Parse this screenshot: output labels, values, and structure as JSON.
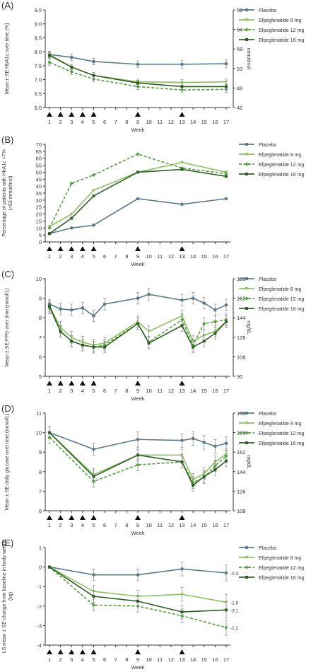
{
  "colors": {
    "placebo": "#5a7a8c",
    "efp8": "#8cc063",
    "efp12": "#4f9e3a",
    "efp16": "#2f5f24",
    "axis": "#333333"
  },
  "week_label": "Week",
  "chart_data": [
    {
      "type": "line",
      "panel_label": "(A)",
      "ylabel": "Mean ± SE HbA1c over time (%)",
      "y2label": "mmol/mol",
      "x_ticks": [
        "1",
        "2",
        "3",
        "4",
        "5",
        "6",
        "7",
        "8",
        "9",
        "10",
        "11",
        "12",
        "13",
        "14",
        "15",
        "16",
        "17"
      ],
      "x": [
        1,
        3,
        5,
        9,
        13,
        17
      ],
      "y_ticks": [
        "6.0",
        "6.5",
        "7.0",
        "7.5",
        "8.0",
        "8.5",
        "9.0",
        "9.5"
      ],
      "ylim": [
        6.0,
        9.5
      ],
      "y2_ticks": [
        "42",
        "48",
        "53",
        "58",
        "64",
        "69"
      ],
      "y2_values": [
        42,
        48,
        53,
        58,
        64,
        69
      ],
      "dose_weeks": [
        1,
        2,
        3,
        4,
        5,
        9,
        13
      ],
      "series": [
        {
          "name": "Placebo",
          "key": "placebo",
          "dash": false,
          "values": [
            7.9,
            7.8,
            7.65,
            7.55,
            7.55,
            7.57
          ],
          "err": [
            0.12,
            0.12,
            0.12,
            0.12,
            0.15,
            0.15
          ]
        },
        {
          "name": "Efpeglenatide 8 mg",
          "key": "efp8",
          "dash": false,
          "values": [
            7.9,
            7.45,
            7.15,
            6.92,
            6.9,
            6.92
          ],
          "err": [
            0.1,
            0.1,
            0.1,
            0.1,
            0.1,
            0.1
          ]
        },
        {
          "name": "Efpeglenatide 12 mg",
          "key": "efp12",
          "dash": true,
          "values": [
            7.62,
            7.28,
            7.02,
            6.75,
            6.63,
            6.65
          ],
          "err": [
            0.1,
            0.1,
            0.1,
            0.1,
            0.1,
            0.1
          ]
        },
        {
          "name": "Efpeglenatide 16 mg",
          "key": "efp16",
          "dash": false,
          "values": [
            7.87,
            7.45,
            7.15,
            6.88,
            6.75,
            6.75
          ],
          "err": [
            0.1,
            0.1,
            0.1,
            0.1,
            0.1,
            0.1
          ]
        }
      ]
    },
    {
      "type": "line",
      "panel_label": "(B)",
      "ylabel": "Percentage of patients with HbA1c <7% (<53 mmol/mol)",
      "x_ticks": [
        "1",
        "2",
        "3",
        "4",
        "5",
        "6",
        "7",
        "8",
        "9",
        "10",
        "11",
        "12",
        "13",
        "14",
        "15",
        "16",
        "17"
      ],
      "x": [
        1,
        3,
        5,
        9,
        13,
        17
      ],
      "y_ticks": [
        "0",
        "5",
        "10",
        "15",
        "20",
        "25",
        "30",
        "35",
        "40",
        "45",
        "50",
        "55",
        "60",
        "65",
        "70"
      ],
      "ylim": [
        0,
        70
      ],
      "dose_weeks": [
        1,
        2,
        3,
        4,
        5,
        9,
        13
      ],
      "series": [
        {
          "name": "Placebo",
          "key": "placebo",
          "dash": false,
          "values": [
            6,
            10,
            12,
            31,
            27,
            31
          ]
        },
        {
          "name": "Efpeglenatide 8 mg",
          "key": "efp8",
          "dash": false,
          "values": [
            11,
            20,
            37,
            50,
            57,
            50
          ]
        },
        {
          "name": "Efpeglenatide 12 mg",
          "key": "efp12",
          "dash": true,
          "values": [
            10,
            42,
            48,
            63,
            53,
            49
          ]
        },
        {
          "name": "Efpeglenatide 16 mg",
          "key": "efp16",
          "dash": false,
          "values": [
            6,
            17,
            33,
            50,
            52,
            47
          ]
        }
      ]
    },
    {
      "type": "line",
      "panel_label": "(C)",
      "ylabel": "Mean ± SE FPG over time (mmol/L)",
      "y2label": "mg/dL",
      "x_ticks": [
        "1",
        "2",
        "3",
        "4",
        "5",
        "6",
        "7",
        "8",
        "9",
        "10",
        "11",
        "12",
        "13",
        "14",
        "15",
        "16",
        "17"
      ],
      "x": [
        1,
        2,
        3,
        4,
        5,
        6,
        9,
        10,
        13,
        14,
        15,
        16,
        17
      ],
      "y_ticks": [
        "5",
        "6",
        "7",
        "8",
        "9",
        "10"
      ],
      "ylim": [
        5,
        10
      ],
      "y2_ticks": [
        "90",
        "108",
        "126",
        "144",
        "162",
        "180"
      ],
      "y2_values": [
        90,
        108,
        126,
        144,
        162,
        180
      ],
      "dose_weeks": [
        1,
        2,
        3,
        4,
        5,
        9,
        13
      ],
      "series": [
        {
          "name": "Placebo",
          "key": "placebo",
          "dash": false,
          "values": [
            8.7,
            8.45,
            8.4,
            8.5,
            8.1,
            8.7,
            9.0,
            9.2,
            8.9,
            9.0,
            8.75,
            8.4,
            8.65
          ],
          "err": [
            0.25,
            0.3,
            0.3,
            0.3,
            0.3,
            0.3,
            0.3,
            0.3,
            0.3,
            0.3,
            0.3,
            0.3,
            0.3
          ]
        },
        {
          "name": "Efpeglenatide 8 mg",
          "key": "efp8",
          "dash": false,
          "values": [
            8.6,
            7.5,
            7.0,
            6.75,
            6.6,
            6.7,
            7.8,
            7.3,
            8.1,
            6.8,
            7.1,
            7.3,
            7.8
          ],
          "err": [
            0.3,
            0.3,
            0.3,
            0.3,
            0.3,
            0.3,
            0.3,
            0.3,
            0.3,
            0.3,
            0.3,
            0.3,
            0.3
          ]
        },
        {
          "name": "Efpeglenatide 12 mg",
          "key": "efp12",
          "dash": true,
          "values": [
            8.5,
            7.3,
            6.8,
            6.6,
            6.5,
            6.6,
            7.7,
            6.75,
            7.9,
            6.6,
            7.7,
            7.8,
            7.9
          ],
          "err": [
            0.3,
            0.3,
            0.3,
            0.3,
            0.3,
            0.3,
            0.3,
            0.3,
            0.3,
            0.3,
            0.3,
            0.3,
            0.3
          ]
        },
        {
          "name": "Efpeglenatide 16 mg",
          "key": "efp16",
          "dash": false,
          "values": [
            8.6,
            7.3,
            6.8,
            6.6,
            6.5,
            6.5,
            7.7,
            6.7,
            7.6,
            6.5,
            6.8,
            7.2,
            7.8
          ],
          "err": [
            0.3,
            0.3,
            0.3,
            0.3,
            0.3,
            0.3,
            0.3,
            0.3,
            0.3,
            0.3,
            0.3,
            0.3,
            0.3
          ]
        }
      ]
    },
    {
      "type": "line",
      "panel_label": "(D)",
      "ylabel": "Mean ± SE daily glucose over time (mmol/L)",
      "y2label": "mg/dL",
      "x_ticks": [
        "1",
        "2",
        "3",
        "4",
        "5",
        "6",
        "7",
        "8",
        "9",
        "10",
        "11",
        "12",
        "13",
        "14",
        "15",
        "16",
        "17"
      ],
      "x": [
        1,
        5,
        9,
        13,
        14,
        15,
        16,
        17
      ],
      "y_ticks": [
        "6",
        "7",
        "8",
        "9",
        "10",
        "11"
      ],
      "ylim": [
        6,
        11
      ],
      "y2_ticks": [
        "108",
        "126",
        "144",
        "162",
        "180",
        "198"
      ],
      "y2_values": [
        108,
        126,
        144,
        162,
        180,
        198
      ],
      "dose_weeks": [
        1,
        2,
        3,
        4,
        5,
        9,
        13
      ],
      "series": [
        {
          "name": "Placebo",
          "key": "placebo",
          "dash": false,
          "values": [
            10.0,
            9.15,
            9.65,
            9.6,
            9.7,
            9.5,
            9.3,
            9.45
          ],
          "err": [
            0.3,
            0.3,
            0.4,
            0.35,
            0.35,
            0.35,
            0.35,
            0.35
          ]
        },
        {
          "name": "Efpeglenatide 8 mg",
          "key": "efp8",
          "dash": false,
          "values": [
            10.0,
            7.85,
            8.85,
            8.85,
            7.6,
            7.9,
            8.5,
            8.9
          ],
          "err": [
            0.3,
            0.3,
            0.3,
            0.3,
            0.3,
            0.3,
            0.3,
            0.3
          ]
        },
        {
          "name": "Efpeglenatide 12 mg",
          "key": "efp12",
          "dash": true,
          "values": [
            9.75,
            7.5,
            8.35,
            8.5,
            7.45,
            7.7,
            8.3,
            8.8
          ],
          "err": [
            0.3,
            0.3,
            0.3,
            0.3,
            0.3,
            0.3,
            0.3,
            0.3
          ]
        },
        {
          "name": "Efpeglenatide 16 mg",
          "key": "efp16",
          "dash": false,
          "values": [
            10.0,
            7.75,
            8.85,
            8.5,
            7.3,
            7.75,
            8.1,
            8.55
          ],
          "err": [
            0.3,
            0.3,
            0.3,
            0.3,
            0.3,
            0.3,
            0.3,
            0.3
          ]
        }
      ]
    },
    {
      "type": "line",
      "panel_label": "(E)",
      "ylabel": "LS mean ± SE change from baseline in body weight (kg)",
      "x_ticks": [
        "1",
        "2",
        "3",
        "4",
        "5",
        "6",
        "7",
        "8",
        "9",
        "10",
        "11",
        "12",
        "13",
        "14",
        "15",
        "16",
        "17"
      ],
      "x": [
        1,
        5,
        9,
        13,
        17
      ],
      "y_ticks": [
        "-4",
        "-3",
        "-2",
        "-1",
        "0",
        "1"
      ],
      "ylim": [
        -4,
        1
      ],
      "dose_weeks": [
        1,
        2,
        3,
        4,
        5,
        9,
        13
      ],
      "end_labels": [
        "-0.3",
        "-1.8",
        "-2.2",
        "-3.1"
      ],
      "series": [
        {
          "name": "Placebo",
          "key": "placebo",
          "dash": false,
          "values": [
            0,
            -0.4,
            -0.4,
            -0.1,
            -0.3
          ],
          "err": [
            0.05,
            0.3,
            0.3,
            0.35,
            0.4
          ]
        },
        {
          "name": "Efpeglenatide 8 mg",
          "key": "efp8",
          "dash": false,
          "values": [
            0,
            -1.25,
            -1.5,
            -1.4,
            -1.8
          ],
          "err": [
            0.05,
            0.3,
            0.3,
            0.35,
            0.4
          ]
        },
        {
          "name": "Efpeglenatide 12 mg",
          "key": "efp12",
          "dash": true,
          "values": [
            0,
            -1.95,
            -2.0,
            -2.5,
            -3.1
          ],
          "err": [
            0.05,
            0.3,
            0.3,
            0.35,
            0.4
          ]
        },
        {
          "name": "Efpeglenatide 16 mg",
          "key": "efp16",
          "dash": false,
          "values": [
            0,
            -1.5,
            -1.75,
            -2.3,
            -2.2
          ],
          "err": [
            0.05,
            0.3,
            0.3,
            0.35,
            0.4
          ]
        }
      ]
    }
  ]
}
